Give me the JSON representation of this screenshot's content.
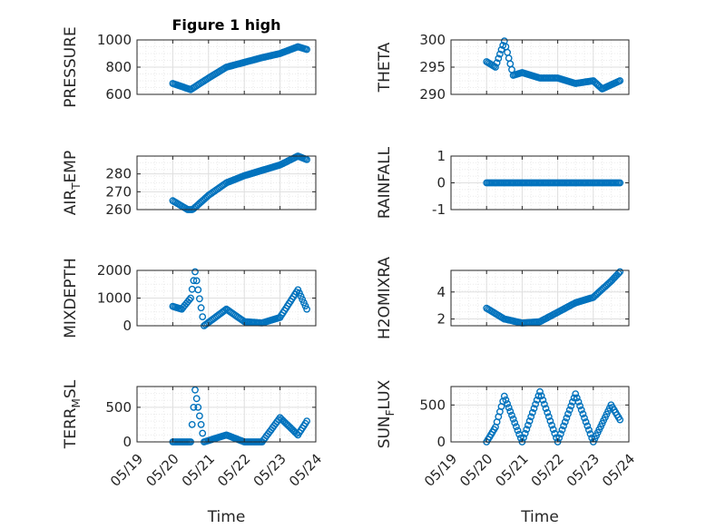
{
  "chart_data": [
    {
      "type": "scatter",
      "title": "Figure 1 high",
      "ylabel": "PRESSURE",
      "ylim": [
        600,
        1000
      ],
      "yticks": [
        600,
        800,
        1000
      ],
      "xlim_dates": [
        "05/19",
        "05/24"
      ],
      "xticks": [],
      "grid": "on",
      "marker": "circle",
      "x": [
        "05/20 00:00",
        "05/20 12:00",
        "05/21 00:00",
        "05/21 12:00",
        "05/22 00:00",
        "05/22 12:00",
        "05/23 00:00",
        "05/23 12:00",
        "05/23 18:00"
      ],
      "y": [
        680,
        635,
        720,
        800,
        835,
        870,
        900,
        950,
        930
      ]
    },
    {
      "type": "scatter",
      "title": "",
      "ylabel": "THETA",
      "ylim": [
        290,
        300
      ],
      "yticks": [
        290,
        295,
        300
      ],
      "xlim_dates": [
        "05/19",
        "05/24"
      ],
      "xticks": [],
      "grid": "on",
      "marker": "circle",
      "x": [
        "05/20 00:00",
        "05/20 06:00",
        "05/20 12:00",
        "05/20 18:00",
        "05/21 00:00",
        "05/21 12:00",
        "05/22 00:00",
        "05/22 12:00",
        "05/23 00:00",
        "05/23 06:00",
        "05/23 18:00"
      ],
      "y": [
        296,
        295,
        299.8,
        293.5,
        294,
        293,
        293,
        292,
        292.5,
        291,
        292.5
      ]
    },
    {
      "type": "scatter",
      "title": "",
      "ylabel": "AIR_TEMP",
      "ylim": [
        260,
        290
      ],
      "yticks": [
        260,
        270,
        280
      ],
      "xlim_dates": [
        "05/19",
        "05/24"
      ],
      "xticks": [],
      "grid": "on",
      "marker": "circle",
      "x": [
        "05/20 00:00",
        "05/20 12:00",
        "05/21 00:00",
        "05/21 12:00",
        "05/22 00:00",
        "05/22 12:00",
        "05/23 00:00",
        "05/23 12:00",
        "05/23 18:00"
      ],
      "y": [
        265,
        259,
        268,
        275,
        279,
        282,
        285,
        290,
        288
      ]
    },
    {
      "type": "scatter",
      "title": "",
      "ylabel": "RAINFALL",
      "ylim": [
        -1,
        1
      ],
      "yticks": [
        -1,
        0,
        1
      ],
      "xlim_dates": [
        "05/19",
        "05/24"
      ],
      "xticks": [],
      "grid": "on",
      "marker": "circle",
      "x": [
        "05/20 00:00",
        "05/21 00:00",
        "05/22 00:00",
        "05/23 00:00",
        "05/23 18:00"
      ],
      "y": [
        0,
        0,
        0,
        0,
        0
      ]
    },
    {
      "type": "scatter",
      "title": "",
      "ylabel": "MIXDEPTH",
      "ylim": [
        0,
        2000
      ],
      "yticks": [
        0,
        1000,
        2000
      ],
      "xlim_dates": [
        "05/19",
        "05/24"
      ],
      "xticks": [],
      "grid": "on",
      "marker": "circle",
      "x": [
        "05/20 00:00",
        "05/20 06:00",
        "05/20 12:00",
        "05/20 15:00",
        "05/20 21:00",
        "05/21 12:00",
        "05/22 00:00",
        "05/22 12:00",
        "05/23 00:00",
        "05/23 12:00",
        "05/23 18:00"
      ],
      "y": [
        700,
        600,
        1000,
        1950,
        0,
        600,
        150,
        100,
        300,
        1300,
        600
      ]
    },
    {
      "type": "scatter",
      "title": "",
      "ylabel": "H2OMIXRA",
      "ylim": [
        1.5,
        5.6
      ],
      "yticks": [
        2,
        4
      ],
      "xlim_dates": [
        "05/19",
        "05/24"
      ],
      "xticks": [],
      "grid": "on",
      "marker": "circle",
      "x": [
        "05/20 00:00",
        "05/20 12:00",
        "05/21 00:00",
        "05/21 12:00",
        "05/22 00:00",
        "05/22 12:00",
        "05/23 00:00",
        "05/23 12:00",
        "05/23 18:00"
      ],
      "y": [
        2.8,
        2,
        1.7,
        1.8,
        2.5,
        3.2,
        3.6,
        4.8,
        5.5
      ]
    },
    {
      "type": "scatter",
      "title": "",
      "ylabel": "TERR_MSL",
      "ylim": [
        0,
        800
      ],
      "yticks": [
        0,
        500
      ],
      "xlim_dates": [
        "05/19",
        "05/24"
      ],
      "xticks": [
        "05/19",
        "05/20",
        "05/21",
        "05/22",
        "05/23",
        "05/24"
      ],
      "xlabel": "Time",
      "grid": "on",
      "marker": "circle",
      "x": [
        "05/20 00:00",
        "05/20 12:00",
        "05/20 15:00",
        "05/20 21:00",
        "05/21 12:00",
        "05/22 00:00",
        "05/22 12:00",
        "05/23 00:00",
        "05/23 12:00",
        "05/23 18:00"
      ],
      "y": [
        0,
        0,
        750,
        0,
        100,
        0,
        0,
        350,
        100,
        300
      ]
    },
    {
      "type": "scatter",
      "title": "",
      "ylabel": "SUN_FLUX",
      "ylim": [
        0,
        750
      ],
      "yticks": [
        0,
        500
      ],
      "xlim_dates": [
        "05/19",
        "05/24"
      ],
      "xticks": [
        "05/19",
        "05/20",
        "05/21",
        "05/22",
        "05/23",
        "05/24"
      ],
      "xlabel": "Time",
      "grid": "on",
      "marker": "circle",
      "x": [
        "05/20 00:00",
        "05/20 06:00",
        "05/20 12:00",
        "05/21 00:00",
        "05/21 12:00",
        "05/22 00:00",
        "05/22 12:00",
        "05/23 00:00",
        "05/23 12:00",
        "05/23 18:00"
      ],
      "y": [
        0,
        200,
        620,
        0,
        680,
        0,
        650,
        0,
        500,
        300
      ]
    }
  ],
  "colors": {
    "marker": "#0072BD",
    "axes": "#262626",
    "grid": "#dfdfdf",
    "minor_grid": "#ebebeb"
  }
}
